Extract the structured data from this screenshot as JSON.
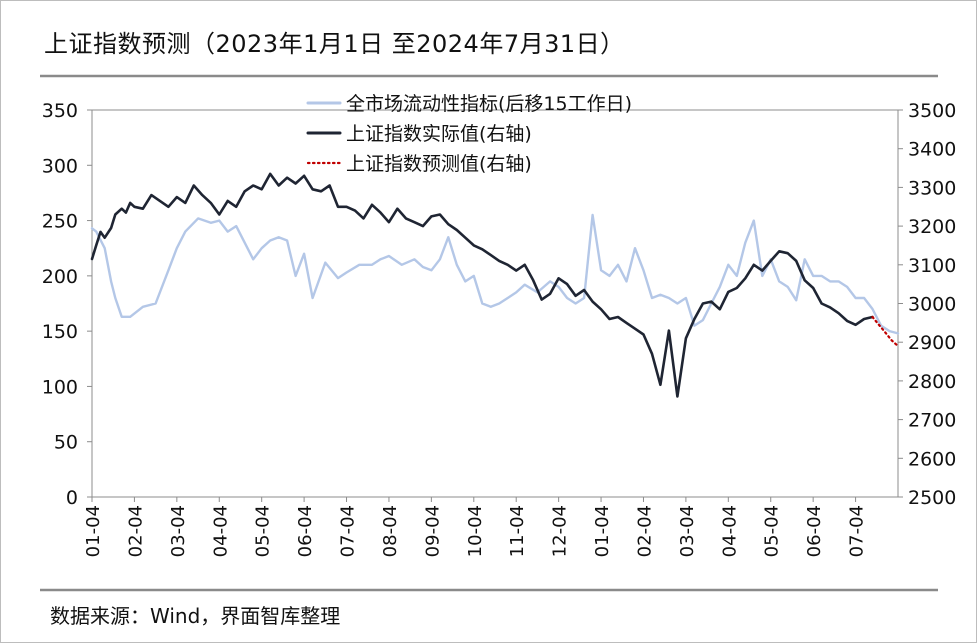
{
  "chart_data": {
    "type": "line",
    "title": "上证指数预测（2023年1月1日 至2024年7月31日）",
    "source": "数据来源：Wind，界面智库整理",
    "x_tick_labels": [
      "01-04",
      "02-04",
      "03-04",
      "04-04",
      "05-04",
      "06-04",
      "07-04",
      "08-04",
      "09-04",
      "10-04",
      "11-04",
      "12-04",
      "01-04",
      "02-04",
      "03-04",
      "04-04",
      "05-04",
      "06-04",
      "07-04"
    ],
    "y_left": {
      "ylim": [
        0,
        350
      ],
      "ticks": [
        "0",
        "50",
        "100",
        "150",
        "200",
        "250",
        "300",
        "350"
      ]
    },
    "y_right": {
      "ylim": [
        2500,
        3500
      ],
      "ticks": [
        "2500",
        "2600",
        "2700",
        "2800",
        "2900",
        "3000",
        "3100",
        "3200",
        "3300",
        "3400",
        "3500"
      ]
    },
    "grid": false,
    "legend_position": "top-left",
    "series": [
      {
        "name": "全市场流动性指标(后移15工作日)",
        "axis": "left",
        "color": "#b4c7e7",
        "style": "solid",
        "x": [
          0,
          0.1,
          0.3,
          0.45,
          0.55,
          0.7,
          0.9,
          1.2,
          1.5,
          1.8,
          2.0,
          2.2,
          2.5,
          2.8,
          3.0,
          3.2,
          3.4,
          3.6,
          3.8,
          4.0,
          4.2,
          4.4,
          4.6,
          4.8,
          5.0,
          5.2,
          5.5,
          5.8,
          6.0,
          6.3,
          6.6,
          6.8,
          7.0,
          7.3,
          7.6,
          7.8,
          8.0,
          8.2,
          8.4,
          8.6,
          8.8,
          9.0,
          9.2,
          9.4,
          9.6,
          9.8,
          10.0,
          10.2,
          10.5,
          10.8,
          11.0,
          11.2,
          11.4,
          11.6,
          11.8,
          12.0,
          12.2,
          12.4,
          12.6,
          12.8,
          13.0,
          13.2,
          13.4,
          13.6,
          13.8,
          14.0,
          14.2,
          14.4,
          14.6,
          14.8,
          15.0,
          15.2,
          15.4,
          15.6,
          15.8,
          16.0,
          16.2,
          16.4,
          16.6,
          16.8,
          17.0,
          17.2,
          17.4,
          17.6,
          17.8,
          18.0,
          18.2,
          18.4,
          18.6,
          18.8,
          19.0
        ],
        "values": [
          243,
          240,
          225,
          195,
          180,
          163,
          163,
          172,
          175,
          205,
          225,
          240,
          252,
          248,
          250,
          240,
          245,
          230,
          215,
          225,
          232,
          235,
          232,
          200,
          220,
          180,
          212,
          198,
          203,
          210,
          210,
          215,
          218,
          210,
          215,
          208,
          205,
          215,
          235,
          210,
          195,
          200,
          175,
          172,
          175,
          180,
          185,
          192,
          185,
          195,
          190,
          180,
          175,
          180,
          255,
          205,
          200,
          210,
          195,
          225,
          205,
          180,
          183,
          180,
          175,
          180,
          155,
          160,
          175,
          190,
          210,
          200,
          230,
          250,
          200,
          215,
          195,
          190,
          178,
          215,
          200,
          200,
          195,
          195,
          190,
          180,
          180,
          170,
          155,
          150,
          148
        ],
        "visible": true
      },
      {
        "name": "上证指数实际值(右轴)",
        "axis": "right",
        "color": "#1f2533",
        "style": "solid",
        "x": [
          0,
          0.1,
          0.2,
          0.3,
          0.45,
          0.55,
          0.7,
          0.8,
          0.9,
          1.0,
          1.2,
          1.4,
          1.6,
          1.8,
          2.0,
          2.2,
          2.4,
          2.6,
          2.8,
          3.0,
          3.2,
          3.4,
          3.6,
          3.8,
          4.0,
          4.2,
          4.4,
          4.6,
          4.8,
          5.0,
          5.2,
          5.4,
          5.6,
          5.8,
          6.0,
          6.2,
          6.4,
          6.6,
          6.8,
          7.0,
          7.2,
          7.4,
          7.6,
          7.8,
          8.0,
          8.2,
          8.4,
          8.6,
          8.8,
          9.0,
          9.2,
          9.4,
          9.6,
          9.8,
          10.0,
          10.2,
          10.4,
          10.6,
          10.8,
          11.0,
          11.2,
          11.4,
          11.6,
          11.8,
          12.0,
          12.2,
          12.4,
          12.6,
          12.8,
          13.0,
          13.2,
          13.4,
          13.6,
          13.8,
          14.0,
          14.2,
          14.4,
          14.6,
          14.8,
          15.0,
          15.2,
          15.4,
          15.6,
          15.8,
          16.0,
          16.2,
          16.4,
          16.6,
          16.8,
          17.0,
          17.2,
          17.4,
          17.6,
          17.8,
          18.0,
          18.2,
          18.4
        ],
        "values": [
          3115,
          3150,
          3185,
          3170,
          3195,
          3230,
          3245,
          3235,
          3260,
          3250,
          3245,
          3280,
          3265,
          3250,
          3275,
          3260,
          3305,
          3280,
          3260,
          3230,
          3265,
          3250,
          3290,
          3305,
          3295,
          3335,
          3305,
          3325,
          3310,
          3330,
          3295,
          3290,
          3305,
          3250,
          3250,
          3240,
          3220,
          3255,
          3235,
          3210,
          3245,
          3220,
          3210,
          3200,
          3225,
          3230,
          3205,
          3190,
          3170,
          3150,
          3140,
          3125,
          3110,
          3100,
          3085,
          3100,
          3060,
          3010,
          3025,
          3065,
          3050,
          3020,
          3035,
          3005,
          2985,
          2960,
          2965,
          2950,
          2935,
          2920,
          2870,
          2790,
          2930,
          2760,
          2910,
          2960,
          3000,
          3005,
          2985,
          3030,
          3040,
          3065,
          3100,
          3085,
          3110,
          3135,
          3130,
          3110,
          3060,
          3040,
          3000,
          2990,
          2975,
          2955,
          2945,
          2960,
          2965
        ],
        "visible": true
      },
      {
        "name": "上证指数预测值(右轴)",
        "axis": "right",
        "color": "#c00000",
        "style": "dotted",
        "x": [
          18.4,
          18.55,
          18.7,
          18.85,
          19.0
        ],
        "values": [
          2965,
          2945,
          2925,
          2905,
          2890
        ],
        "visible": true
      }
    ]
  }
}
